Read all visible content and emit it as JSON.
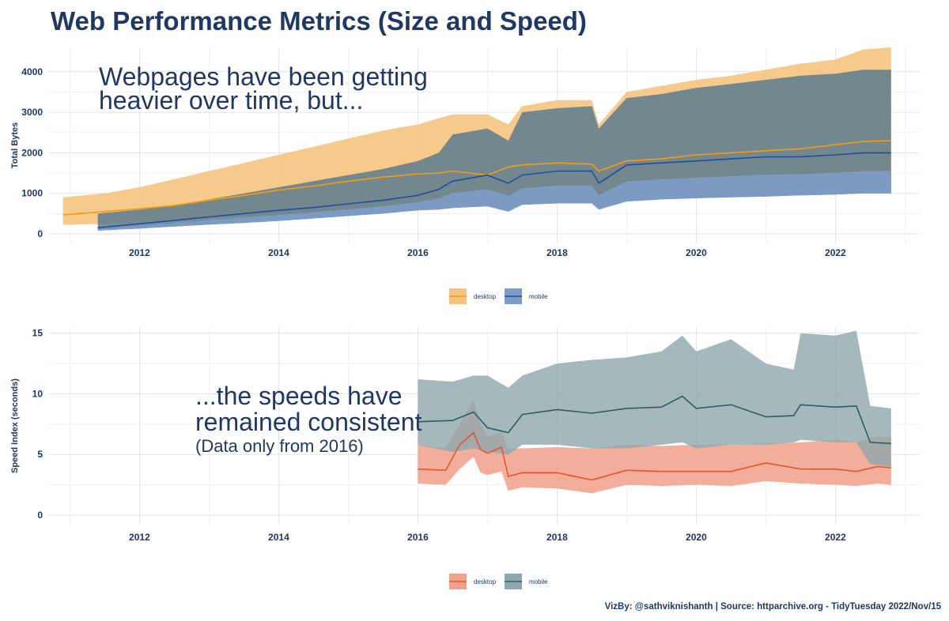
{
  "title": "Web Performance Metrics (Size and Speed)",
  "caption": "VizBy: @sathviknishanth | Source: httparchive.org - TidyTuesday 2022/Nov/15",
  "colors": {
    "size_desktop_band": "#f5c47e",
    "size_desktop_line": "#f39c12",
    "size_mobile_band": "#5c7c8e",
    "size_mobile_bottom": "#7d9cc8",
    "size_mobile_line": "#1f4e9c",
    "speed_desktop_band": "#f1a08a",
    "speed_desktop_line": "#e4572e",
    "speed_mobile_band": "#8fa8ac",
    "speed_mobile_line": "#2f5d5f"
  },
  "chart_data": [
    {
      "type": "area",
      "ylabel": "Total Bytes",
      "xlim": [
        2010.7,
        2023.2
      ],
      "ylim": [
        0,
        4600
      ],
      "x_ticks": [
        "2012",
        "2014",
        "2016",
        "2018",
        "2020",
        "2022"
      ],
      "y_ticks": [
        "0",
        "1000",
        "2000",
        "3000",
        "4000"
      ],
      "annotation": [
        "Webpages have been getting",
        "heavier over time, but..."
      ],
      "legend": {
        "position": "bottom",
        "entries": [
          "desktop",
          "mobile"
        ]
      },
      "series": [
        {
          "name": "desktop",
          "x": [
            2010.9,
            2011.5,
            2012,
            2012.5,
            2013,
            2013.5,
            2014,
            2014.5,
            2015,
            2015.5,
            2016,
            2016.3,
            2016.5,
            2017,
            2017.3,
            2017.5,
            2018,
            2018.5,
            2018.6,
            2019,
            2019.5,
            2020,
            2020.5,
            2021,
            2021.5,
            2022,
            2022.4,
            2022.8
          ],
          "upper": [
            900,
            1000,
            1150,
            1350,
            1550,
            1750,
            1950,
            2150,
            2350,
            2550,
            2700,
            2850,
            2950,
            2950,
            2700,
            3150,
            3300,
            3300,
            2700,
            3500,
            3650,
            3800,
            3900,
            4050,
            4200,
            4300,
            4550,
            4600
          ],
          "median": [
            470,
            550,
            620,
            700,
            830,
            950,
            1080,
            1180,
            1300,
            1400,
            1480,
            1500,
            1550,
            1450,
            1650,
            1700,
            1750,
            1720,
            1550,
            1800,
            1850,
            1950,
            2000,
            2050,
            2100,
            2200,
            2280,
            2300
          ],
          "lower": [
            220,
            250,
            280,
            330,
            380,
            430,
            480,
            540,
            600,
            650,
            700,
            720,
            750,
            700,
            750,
            800,
            830,
            820,
            750,
            850,
            900,
            950,
            980,
            1000,
            1030,
            1060,
            1100,
            1100
          ]
        },
        {
          "name": "mobile",
          "x": [
            2011.4,
            2012,
            2012.5,
            2013,
            2013.5,
            2014,
            2014.5,
            2015,
            2015.5,
            2016,
            2016.3,
            2016.5,
            2017,
            2017.3,
            2017.5,
            2018,
            2018.5,
            2018.6,
            2019,
            2019.5,
            2020,
            2020.5,
            2021,
            2021.5,
            2022,
            2022.4,
            2022.8
          ],
          "upper": [
            500,
            600,
            700,
            850,
            1000,
            1150,
            1300,
            1450,
            1600,
            1800,
            2000,
            2450,
            2600,
            2300,
            3000,
            3100,
            3150,
            2600,
            3350,
            3450,
            3600,
            3700,
            3800,
            3900,
            3950,
            4050,
            4050
          ],
          "median": [
            150,
            250,
            330,
            420,
            500,
            580,
            650,
            740,
            830,
            950,
            1100,
            1300,
            1450,
            1250,
            1450,
            1550,
            1550,
            1250,
            1700,
            1750,
            1800,
            1850,
            1900,
            1900,
            1950,
            2000,
            2000
          ],
          "lower": [
            80,
            130,
            180,
            230,
            270,
            320,
            380,
            440,
            500,
            580,
            600,
            640,
            680,
            550,
            720,
            750,
            750,
            600,
            800,
            850,
            880,
            900,
            920,
            950,
            970,
            1000,
            1000
          ]
        }
      ]
    },
    {
      "type": "area",
      "ylabel": "Speed Index (seconds)",
      "xlim": [
        2010.7,
        2023.2
      ],
      "ylim": [
        0,
        15.5
      ],
      "x_ticks": [
        "2012",
        "2014",
        "2016",
        "2018",
        "2020",
        "2022"
      ],
      "y_ticks": [
        "0",
        "5",
        "10",
        "15"
      ],
      "annotation": [
        "...the speeds have",
        "remained consistent"
      ],
      "annotation_note": "(Data only from 2016)",
      "legend": {
        "position": "bottom",
        "entries": [
          "desktop",
          "mobile"
        ]
      },
      "series": [
        {
          "name": "desktop",
          "x": [
            2016,
            2016.4,
            2016.6,
            2016.8,
            2016.9,
            2017,
            2017.2,
            2017.3,
            2017.5,
            2018,
            2018.5,
            2019,
            2019.5,
            2020,
            2020.5,
            2021,
            2021.5,
            2022,
            2022.3,
            2022.6,
            2022.8
          ],
          "upper": [
            5.8,
            5.5,
            7.5,
            9.5,
            7.5,
            6.5,
            6.8,
            5.5,
            5.5,
            5.6,
            5.5,
            5.8,
            5.7,
            5.8,
            5.8,
            5.9,
            6.0,
            6.2,
            6.0,
            6.5,
            6.4
          ],
          "median": [
            3.8,
            3.7,
            5.8,
            6.8,
            5.4,
            5.1,
            5.6,
            3.2,
            3.5,
            3.5,
            2.9,
            3.7,
            3.6,
            3.6,
            3.6,
            4.3,
            3.8,
            3.8,
            3.6,
            4.0,
            3.9
          ],
          "lower": [
            2.6,
            2.5,
            3.8,
            4.8,
            3.5,
            3.3,
            3.6,
            2.0,
            2.3,
            2.2,
            1.8,
            2.5,
            2.4,
            2.5,
            2.4,
            2.8,
            2.6,
            2.5,
            2.4,
            2.6,
            2.5
          ]
        },
        {
          "name": "mobile",
          "x": [
            2016,
            2016.5,
            2016.8,
            2017,
            2017.3,
            2017.5,
            2018,
            2018.5,
            2019,
            2019.5,
            2019.8,
            2020,
            2020.5,
            2021,
            2021.4,
            2021.5,
            2022,
            2022.3,
            2022.5,
            2022.8
          ],
          "upper": [
            11.2,
            11.0,
            11.5,
            11.5,
            10.5,
            11.5,
            12.5,
            12.8,
            13.0,
            13.5,
            14.8,
            13.5,
            14.5,
            12.5,
            12.0,
            15.0,
            14.8,
            15.2,
            9.0,
            8.8
          ],
          "median": [
            7.7,
            7.8,
            8.5,
            7.2,
            6.8,
            8.3,
            8.7,
            8.4,
            8.8,
            8.9,
            9.8,
            8.8,
            9.1,
            8.1,
            8.2,
            9.1,
            8.9,
            9.0,
            6.0,
            5.9
          ],
          "lower": [
            5.8,
            5.2,
            5.5,
            5.2,
            5.0,
            5.8,
            5.8,
            5.5,
            5.5,
            5.8,
            6.0,
            5.5,
            5.8,
            5.8,
            6.0,
            6.2,
            6.0,
            6.0,
            4.2,
            4.0
          ]
        }
      ]
    }
  ]
}
